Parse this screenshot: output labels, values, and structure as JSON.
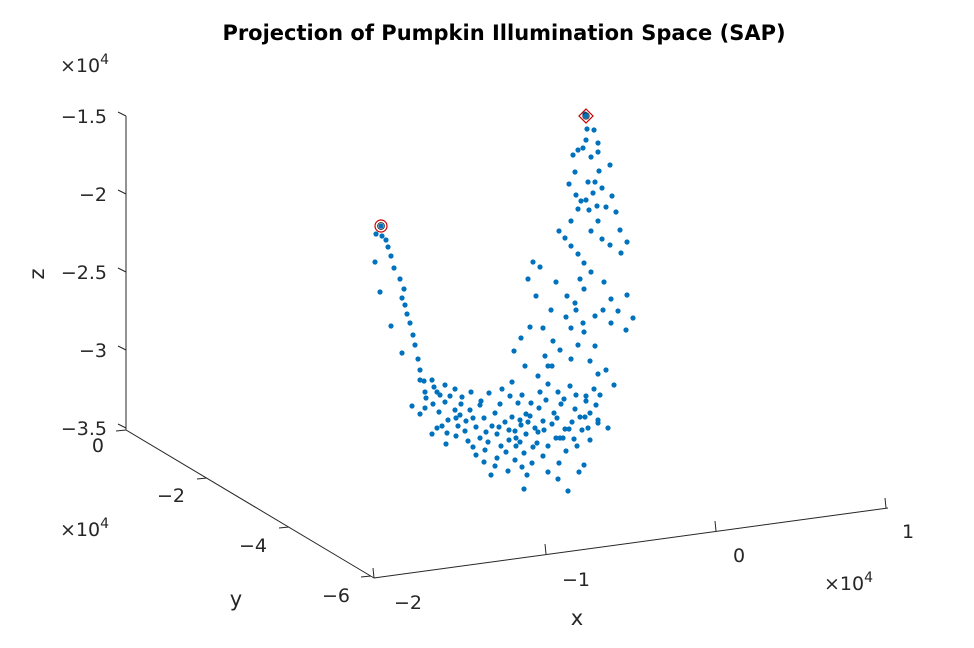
{
  "chart_data": {
    "type": "scatter",
    "title": "Projection of Pumpkin Illumination Space (SAP)",
    "xlabel": "x",
    "ylabel": "y",
    "zlabel": "z",
    "x_ticks": [
      "−2",
      "−1",
      "0",
      "1"
    ],
    "y_ticks": [
      "0",
      "−2",
      "−4",
      "−6"
    ],
    "z_ticks": [
      "−1.5",
      "−2",
      "−2.5",
      "−3",
      "−3.5"
    ],
    "x_exponent": "×10",
    "y_exponent": "×10",
    "z_exponent": "×10",
    "exponent_power": "4",
    "series_color": "#0072BD",
    "highlight_color": "#D95319",
    "view": "3-D projection (MATLAB default azimuth/elevation); point coordinates below are read in the projected screen plane",
    "points": [
      [
        381,
        226
      ],
      [
        382,
        236
      ],
      [
        376,
        234
      ],
      [
        386,
        240
      ],
      [
        388,
        247
      ],
      [
        375,
        262
      ],
      [
        391,
        256
      ],
      [
        394,
        268
      ],
      [
        400,
        279
      ],
      [
        380,
        292
      ],
      [
        404,
        289
      ],
      [
        402,
        298
      ],
      [
        405,
        305
      ],
      [
        407,
        314
      ],
      [
        391,
        326
      ],
      [
        410,
        323
      ],
      [
        413,
        335
      ],
      [
        415,
        345
      ],
      [
        402,
        353
      ],
      [
        418,
        359
      ],
      [
        420,
        370
      ],
      [
        424,
        381
      ],
      [
        432,
        380
      ],
      [
        434,
        387
      ],
      [
        440,
        395
      ],
      [
        425,
        408
      ],
      [
        412,
        406
      ],
      [
        420,
        414
      ],
      [
        445,
        402
      ],
      [
        450,
        396
      ],
      [
        455,
        410
      ],
      [
        461,
        404
      ],
      [
        448,
        420
      ],
      [
        437,
        428
      ],
      [
        432,
        434
      ],
      [
        447,
        433
      ],
      [
        456,
        436
      ],
      [
        465,
        431
      ],
      [
        468,
        441
      ],
      [
        473,
        447
      ],
      [
        480,
        438
      ],
      [
        488,
        442
      ],
      [
        476,
        427
      ],
      [
        484,
        418
      ],
      [
        492,
        426
      ],
      [
        497,
        434
      ],
      [
        501,
        446
      ],
      [
        509,
        440
      ],
      [
        515,
        431
      ],
      [
        520,
        442
      ],
      [
        526,
        434
      ],
      [
        533,
        447
      ],
      [
        524,
        453
      ],
      [
        515,
        460
      ],
      [
        506,
        452
      ],
      [
        497,
        458
      ],
      [
        484,
        462
      ],
      [
        476,
        455
      ],
      [
        491,
        475
      ],
      [
        508,
        471
      ],
      [
        522,
        467
      ],
      [
        527,
        475
      ],
      [
        524,
        489
      ],
      [
        543,
        456
      ],
      [
        548,
        446
      ],
      [
        556,
        438
      ],
      [
        565,
        429
      ],
      [
        572,
        422
      ],
      [
        580,
        417
      ],
      [
        590,
        413
      ],
      [
        596,
        405
      ],
      [
        586,
        401
      ],
      [
        576,
        395
      ],
      [
        570,
        386
      ],
      [
        558,
        392
      ],
      [
        548,
        384
      ],
      [
        546,
        400
      ],
      [
        539,
        408
      ],
      [
        526,
        414
      ],
      [
        518,
        403
      ],
      [
        510,
        396
      ],
      [
        502,
        389
      ],
      [
        489,
        393
      ],
      [
        481,
        401
      ],
      [
        471,
        392
      ],
      [
        462,
        397
      ],
      [
        455,
        389
      ],
      [
        445,
        385
      ],
      [
        437,
        392
      ],
      [
        426,
        398
      ],
      [
        568,
        491
      ],
      [
        558,
        479
      ],
      [
        584,
        465
      ],
      [
        577,
        446
      ],
      [
        566,
        451
      ],
      [
        559,
        463
      ],
      [
        548,
        472
      ],
      [
        543,
        421
      ],
      [
        554,
        413
      ],
      [
        561,
        404
      ],
      [
        588,
        428
      ],
      [
        598,
        420
      ],
      [
        582,
        430
      ],
      [
        575,
        409
      ],
      [
        564,
        399
      ],
      [
        552,
        366
      ],
      [
        545,
        356
      ],
      [
        553,
        341
      ],
      [
        560,
        350
      ],
      [
        571,
        359
      ],
      [
        578,
        345
      ],
      [
        595,
        346
      ],
      [
        606,
        370
      ],
      [
        614,
        385
      ],
      [
        598,
        374
      ],
      [
        590,
        361
      ],
      [
        584,
        332
      ],
      [
        571,
        328
      ],
      [
        566,
        317
      ],
      [
        575,
        303
      ],
      [
        584,
        289
      ],
      [
        580,
        279
      ],
      [
        591,
        272
      ],
      [
        584,
        263
      ],
      [
        578,
        254
      ],
      [
        571,
        246
      ],
      [
        565,
        238
      ],
      [
        559,
        231
      ],
      [
        571,
        221
      ],
      [
        578,
        209
      ],
      [
        586,
        200
      ],
      [
        593,
        193
      ],
      [
        588,
        182
      ],
      [
        599,
        171
      ],
      [
        591,
        157
      ],
      [
        583,
        148
      ],
      [
        586,
        140
      ],
      [
        578,
        150
      ],
      [
        573,
        155
      ],
      [
        575,
        172
      ],
      [
        569,
        184
      ],
      [
        576,
        195
      ],
      [
        581,
        201
      ],
      [
        589,
        210
      ],
      [
        597,
        206
      ],
      [
        606,
        207
      ],
      [
        598,
        221
      ],
      [
        591,
        231
      ],
      [
        602,
        239
      ],
      [
        610,
        245
      ],
      [
        620,
        230
      ],
      [
        627,
        242
      ],
      [
        621,
        253
      ],
      [
        616,
        212
      ],
      [
        612,
        196
      ],
      [
        602,
        188
      ],
      [
        595,
        182
      ],
      [
        598,
        143
      ],
      [
        594,
        130
      ],
      [
        586,
        116
      ],
      [
        585,
        114
      ],
      [
        587,
        129
      ],
      [
        598,
        152
      ],
      [
        610,
        165
      ],
      [
        604,
        282
      ],
      [
        611,
        299
      ],
      [
        603,
        310
      ],
      [
        611,
        323
      ],
      [
        618,
        311
      ],
      [
        627,
        295
      ],
      [
        633,
        318
      ],
      [
        626,
        330
      ],
      [
        595,
        316
      ],
      [
        583,
        323
      ],
      [
        576,
        310
      ],
      [
        567,
        296
      ],
      [
        556,
        282
      ],
      [
        540,
        267
      ],
      [
        533,
        262
      ],
      [
        528,
        279
      ],
      [
        536,
        296
      ],
      [
        551,
        310
      ],
      [
        543,
        328
      ],
      [
        530,
        327
      ],
      [
        521,
        338
      ],
      [
        514,
        351
      ],
      [
        525,
        366
      ],
      [
        538,
        376
      ],
      [
        548,
        366
      ],
      [
        520,
        420
      ],
      [
        530,
        416
      ],
      [
        538,
        432
      ],
      [
        560,
        438
      ],
      [
        574,
        439
      ],
      [
        585,
        417
      ],
      [
        590,
        440
      ],
      [
        600,
        395
      ],
      [
        608,
        428
      ],
      [
        460,
        415
      ],
      [
        470,
        410
      ],
      [
        480,
        405
      ],
      [
        495,
        413
      ],
      [
        505,
        422
      ],
      [
        512,
        417
      ],
      [
        535,
        428
      ],
      [
        485,
        450
      ],
      [
        495,
        466
      ],
      [
        516,
        446
      ],
      [
        532,
        463
      ],
      [
        528,
        422
      ],
      [
        446,
        444
      ],
      [
        442,
        426
      ],
      [
        456,
        418
      ],
      [
        466,
        421
      ],
      [
        500,
        404
      ],
      [
        512,
        382
      ],
      [
        522,
        395
      ],
      [
        540,
        392
      ],
      [
        531,
        403
      ],
      [
        579,
        472
      ],
      [
        420,
        380
      ],
      [
        425,
        392
      ],
      [
        433,
        404
      ],
      [
        439,
        412
      ],
      [
        458,
        426
      ],
      [
        473,
        418
      ],
      [
        486,
        432
      ],
      [
        499,
        427
      ],
      [
        509,
        430
      ],
      [
        516,
        438
      ],
      [
        521,
        425
      ],
      [
        537,
        443
      ],
      [
        544,
        430
      ],
      [
        552,
        424
      ],
      [
        557,
        418
      ],
      [
        563,
        438
      ],
      [
        569,
        429
      ],
      [
        586,
        396
      ],
      [
        594,
        389
      ],
      [
        598,
        423
      ]
    ],
    "highlighted_points": [
      [
        381,
        226
      ],
      [
        586,
        116
      ]
    ]
  }
}
